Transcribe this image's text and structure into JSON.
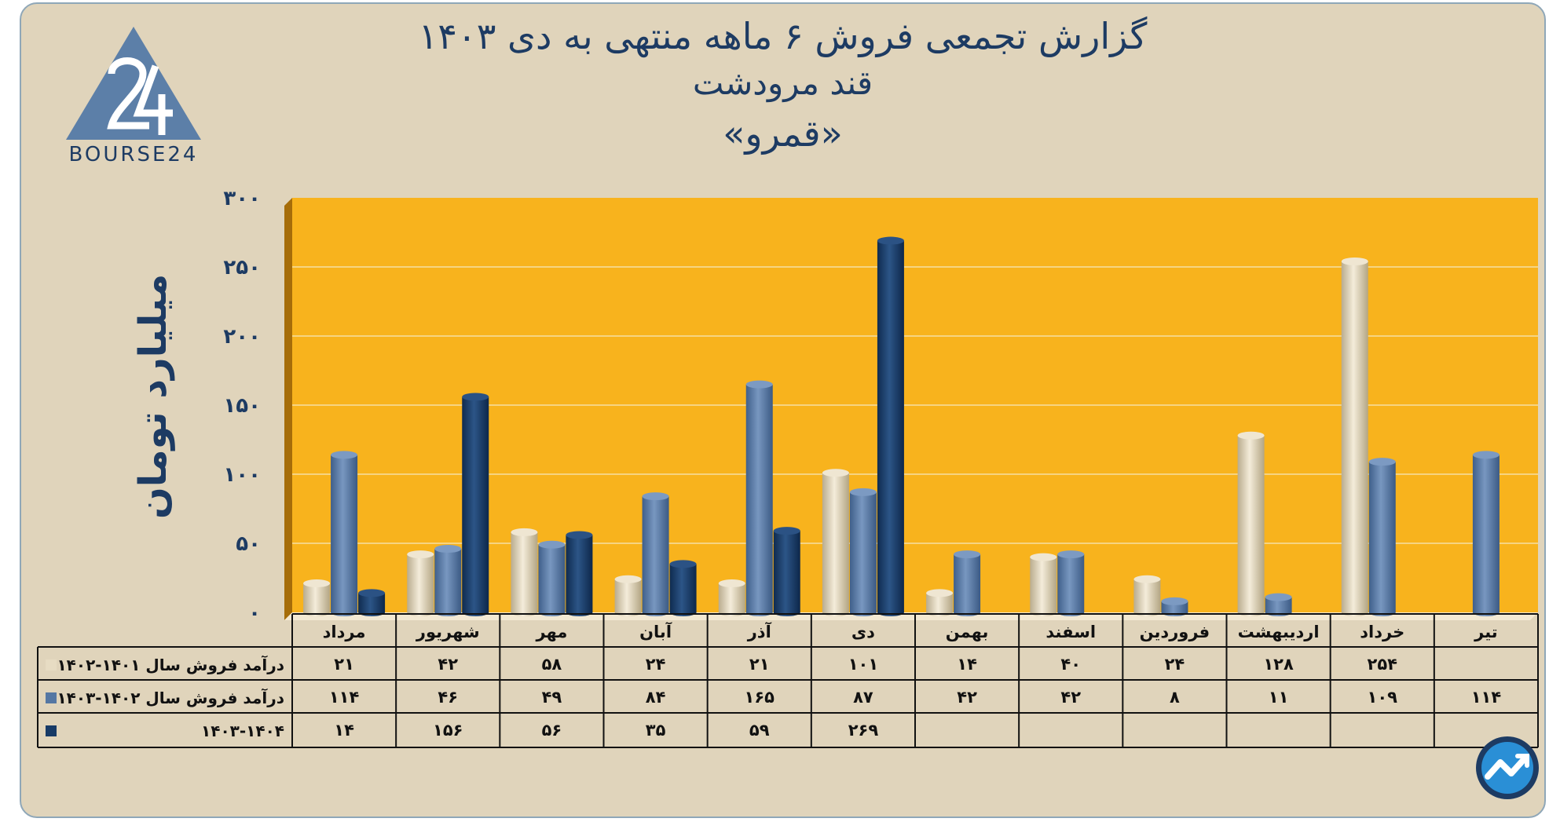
{
  "title_lines": [
    "گزارش تجمعی فروش ۶ ماهه منتهی به دی ۱۴۰۳",
    "قند مرودشت",
    "«قمرو»"
  ],
  "logo_text": "BOURSE24",
  "colors": {
    "background": "#e0d4bb",
    "plot_area": "#f8b31d",
    "series_1": "#e7dcc3",
    "series_2": "#5577a3",
    "series_3": "#173a66",
    "text": "#1d3b63"
  },
  "chart_data": {
    "type": "bar",
    "title": "گزارش تجمعی فروش ۶ ماهه منتهی به دی ۱۴۰۳",
    "ylabel": "میلیارد تومان",
    "xlabel": "",
    "ylim": [
      0,
      300
    ],
    "yticks": [
      0,
      50,
      100,
      150,
      200,
      250,
      300
    ],
    "ytick_labels": [
      "۰",
      "۵۰",
      "۱۰۰",
      "۱۵۰",
      "۲۰۰",
      "۲۵۰",
      "۳۰۰"
    ],
    "grid": true,
    "legend": "data table, left",
    "categories": [
      "مرداد",
      "شهریور",
      "مهر",
      "آبان",
      "آذر",
      "دی",
      "بهمن",
      "اسفند",
      "فروردین",
      "اردیبهشت",
      "خرداد",
      "تیر"
    ],
    "series": [
      {
        "name": "درآمد فروش سال ۱۴۰۱-۱۴۰۲",
        "color": "#e7dcc3",
        "values": [
          21,
          42,
          58,
          24,
          21,
          101,
          14,
          40,
          24,
          128,
          254,
          null
        ],
        "labels": [
          "۲۱",
          "۴۲",
          "۵۸",
          "۲۴",
          "۲۱",
          "۱۰۱",
          "۱۴",
          "۴۰",
          "۲۴",
          "۱۲۸",
          "۲۵۴",
          ""
        ]
      },
      {
        "name": "درآمد فروش سال ۱۴۰۲-۱۴۰۳",
        "color": "#5577a3",
        "values": [
          114,
          46,
          49,
          84,
          165,
          87,
          42,
          42,
          8,
          11,
          109,
          114
        ],
        "labels": [
          "۱۱۴",
          "۴۶",
          "۴۹",
          "۸۴",
          "۱۶۵",
          "۸۷",
          "۴۲",
          "۴۲",
          "۸",
          "۱۱",
          "۱۰۹",
          "۱۱۴"
        ]
      },
      {
        "name": "۱۴۰۳-۱۴۰۴",
        "color": "#173a66",
        "values": [
          14,
          156,
          56,
          35,
          59,
          269,
          null,
          null,
          null,
          null,
          null,
          null
        ],
        "labels": [
          "۱۴",
          "۱۵۶",
          "۵۶",
          "۳۵",
          "۵۹",
          "۲۶۹",
          "",
          "",
          "",
          "",
          "",
          ""
        ]
      }
    ]
  }
}
